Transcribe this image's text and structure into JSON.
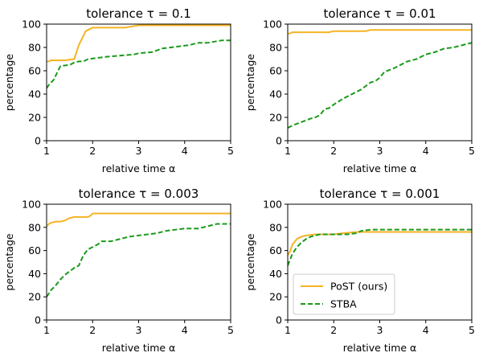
{
  "chart_data": [
    {
      "type": "line",
      "title": "tolerance τ = 0.1",
      "xlabel": "relative time α",
      "ylabel": "percentage",
      "xlim": [
        1,
        5
      ],
      "ylim": [
        0,
        100
      ],
      "xticks": [
        "1",
        "2",
        "3",
        "4",
        "5"
      ],
      "yticks": [
        "0",
        "20",
        "40",
        "60",
        "80",
        "100"
      ],
      "grid": false,
      "legend": null,
      "series": [
        {
          "name": "PoST (ours)",
          "color": "#f5b324",
          "style": "solid",
          "x": [
            1.0,
            1.05,
            1.1,
            1.2,
            1.4,
            1.6,
            1.7,
            1.85,
            1.95,
            2.0,
            2.3,
            2.7,
            2.85,
            3.0,
            3.5,
            4.0,
            5.0
          ],
          "y": [
            68,
            68,
            69,
            69,
            69,
            70,
            82,
            94,
            96,
            97,
            97,
            97,
            98,
            99,
            99,
            99,
            99
          ]
        },
        {
          "name": "STBA",
          "color": "#1a9a1a",
          "style": "dashed",
          "x": [
            1.0,
            1.05,
            1.1,
            1.15,
            1.25,
            1.3,
            1.5,
            1.6,
            1.7,
            1.8,
            1.9,
            2.1,
            2.3,
            2.6,
            2.9,
            3.0,
            3.3,
            3.5,
            3.7,
            3.9,
            4.1,
            4.3,
            4.5,
            4.8,
            5.0
          ],
          "y": [
            45,
            48,
            50,
            52,
            60,
            64,
            65,
            67,
            68,
            68,
            70,
            71,
            72,
            73,
            74,
            75,
            76,
            79,
            80,
            81,
            82,
            84,
            84,
            86,
            86
          ]
        }
      ]
    },
    {
      "type": "line",
      "title": "tolerance τ = 0.01",
      "xlabel": "relative time α",
      "ylabel": "percentage",
      "xlim": [
        1,
        5
      ],
      "ylim": [
        0,
        100
      ],
      "xticks": [
        "1",
        "2",
        "3",
        "4",
        "5"
      ],
      "yticks": [
        "0",
        "20",
        "40",
        "60",
        "80",
        "100"
      ],
      "grid": false,
      "legend": null,
      "series": [
        {
          "name": "PoST (ours)",
          "color": "#f5b324",
          "style": "solid",
          "x": [
            1.0,
            1.05,
            1.1,
            1.9,
            2.0,
            2.7,
            2.8,
            5.0
          ],
          "y": [
            92,
            92,
            93,
            93,
            94,
            94,
            95,
            95
          ]
        },
        {
          "name": "STBA",
          "color": "#1a9a1a",
          "style": "dashed",
          "x": [
            1.0,
            1.1,
            1.3,
            1.5,
            1.6,
            1.7,
            1.8,
            1.9,
            2.0,
            2.2,
            2.4,
            2.6,
            2.8,
            2.9,
            3.0,
            3.1,
            3.3,
            3.5,
            3.6,
            3.8,
            4.0,
            4.2,
            4.4,
            4.6,
            4.8,
            5.0
          ],
          "y": [
            11,
            13,
            16,
            19,
            20,
            22,
            27,
            28,
            31,
            36,
            40,
            44,
            50,
            51,
            54,
            59,
            62,
            66,
            68,
            70,
            74,
            76,
            79,
            80,
            82,
            84
          ]
        }
      ]
    },
    {
      "type": "line",
      "title": "tolerance τ = 0.003",
      "xlabel": "relative time α",
      "ylabel": "percentage",
      "xlim": [
        1,
        5
      ],
      "ylim": [
        0,
        100
      ],
      "xticks": [
        "1",
        "2",
        "3",
        "4",
        "5"
      ],
      "yticks": [
        "0",
        "20",
        "40",
        "60",
        "80",
        "100"
      ],
      "grid": false,
      "legend": null,
      "series": [
        {
          "name": "PoST (ours)",
          "color": "#f5b324",
          "style": "solid",
          "x": [
            1.0,
            1.05,
            1.1,
            1.2,
            1.3,
            1.4,
            1.5,
            1.6,
            1.9,
            1.95,
            2.0,
            5.0
          ],
          "y": [
            81,
            83,
            84,
            85,
            85,
            86,
            88,
            89,
            89,
            90,
            92,
            92
          ]
        },
        {
          "name": "STBA",
          "color": "#1a9a1a",
          "style": "dashed",
          "x": [
            1.0,
            1.05,
            1.1,
            1.2,
            1.3,
            1.4,
            1.5,
            1.6,
            1.7,
            1.8,
            1.9,
            2.0,
            2.1,
            2.2,
            2.4,
            2.6,
            2.8,
            3.0,
            3.2,
            3.4,
            3.6,
            3.8,
            4.0,
            4.3,
            4.5,
            4.7,
            5.0
          ],
          "y": [
            20,
            23,
            26,
            30,
            35,
            39,
            42,
            45,
            47,
            56,
            61,
            63,
            65,
            68,
            68,
            70,
            72,
            73,
            74,
            75,
            77,
            78,
            79,
            79,
            81,
            83,
            83
          ]
        }
      ]
    },
    {
      "type": "line",
      "title": "tolerance τ = 0.001",
      "xlabel": "relative time α",
      "ylabel": "percentage",
      "xlim": [
        1,
        5
      ],
      "ylim": [
        0,
        100
      ],
      "xticks": [
        "1",
        "2",
        "3",
        "4",
        "5"
      ],
      "yticks": [
        "0",
        "20",
        "40",
        "60",
        "80",
        "100"
      ],
      "grid": false,
      "legend": "lower-left",
      "series": [
        {
          "name": "PoST (ours)",
          "color": "#f5b324",
          "style": "solid",
          "x": [
            1.0,
            1.05,
            1.1,
            1.2,
            1.3,
            1.4,
            1.6,
            1.8,
            2.0,
            2.2,
            2.5,
            2.7,
            3.0,
            5.0
          ],
          "y": [
            56,
            59,
            65,
            70,
            72,
            73,
            74,
            74,
            74,
            75,
            76,
            76,
            76,
            76
          ]
        },
        {
          "name": "STBA",
          "color": "#1a9a1a",
          "style": "dashed",
          "x": [
            1.0,
            1.05,
            1.1,
            1.2,
            1.3,
            1.4,
            1.5,
            1.7,
            1.9,
            2.1,
            2.3,
            2.5,
            2.6,
            2.8,
            3.0,
            5.0
          ],
          "y": [
            47,
            52,
            57,
            63,
            67,
            70,
            72,
            74,
            74,
            74,
            74,
            75,
            77,
            78,
            78,
            78
          ]
        }
      ]
    }
  ]
}
